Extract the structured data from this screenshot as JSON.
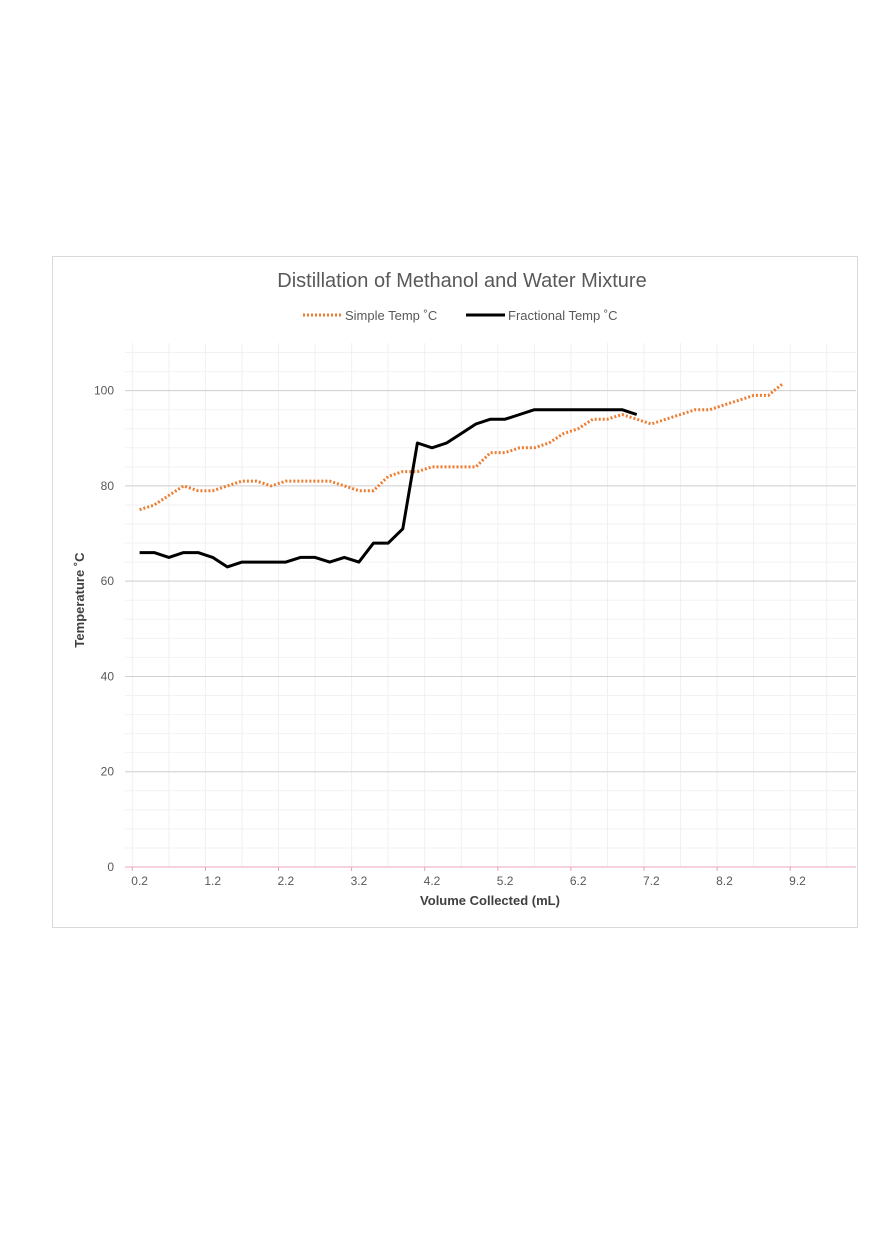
{
  "chart_data": {
    "type": "line",
    "title": "Distillation of Methanol and Water Mixture",
    "xlabel": "Volume Collected (mL)",
    "ylabel": "Temperature ˚C",
    "xlim": [
      0.0,
      10.0
    ],
    "ylim": [
      0,
      110
    ],
    "x_ticks": [
      "0.2",
      "1.2",
      "2.2",
      "3.2",
      "4.2",
      "5.2",
      "6.2",
      "7.2",
      "8.2",
      "9.2"
    ],
    "y_ticks": [
      "0",
      "20",
      "40",
      "60",
      "80",
      "100"
    ],
    "legend_position": "top",
    "series": [
      {
        "name": "Simple Temp ˚C",
        "color": "#ed7d31",
        "style": "dotted",
        "x": [
          0.2,
          0.4,
          0.6,
          0.8,
          1.0,
          1.2,
          1.4,
          1.6,
          1.8,
          2.0,
          2.2,
          2.4,
          2.6,
          2.8,
          3.0,
          3.2,
          3.4,
          3.6,
          3.8,
          4.0,
          4.2,
          4.4,
          4.6,
          4.8,
          5.0,
          5.2,
          5.4,
          5.6,
          5.8,
          6.0,
          6.2,
          6.4,
          6.6,
          6.8,
          7.0,
          7.2,
          7.4,
          7.6,
          7.8,
          8.0,
          8.2,
          8.4,
          8.6,
          8.8,
          9.0
        ],
        "y": [
          75,
          76,
          78,
          80,
          79,
          79,
          80,
          81,
          81,
          80,
          81,
          81,
          81,
          81,
          80,
          79,
          79,
          82,
          83,
          83,
          84,
          84,
          84,
          84,
          87,
          87,
          88,
          88,
          89,
          91,
          92,
          94,
          94,
          95,
          94,
          93,
          94,
          95,
          96,
          96,
          97,
          98,
          99,
          99,
          101.5
        ]
      },
      {
        "name": "Fractional Temp ˚C",
        "color": "#000000",
        "style": "solid",
        "x": [
          0.2,
          0.4,
          0.6,
          0.8,
          1.0,
          1.2,
          1.4,
          1.6,
          1.8,
          2.0,
          2.2,
          2.4,
          2.6,
          2.8,
          3.0,
          3.2,
          3.4,
          3.6,
          3.8,
          4.0,
          4.2,
          4.4,
          4.6,
          4.8,
          5.0,
          5.2,
          5.4,
          5.6,
          5.8,
          6.0,
          6.2,
          6.4,
          6.6,
          6.8,
          7.0
        ],
        "y": [
          66,
          66,
          65,
          66,
          66,
          65,
          63,
          64,
          64,
          64,
          64,
          65,
          65,
          64,
          65,
          64,
          68,
          68,
          71,
          89,
          88,
          89,
          91,
          93,
          94,
          94,
          95,
          96,
          96,
          96,
          96,
          96,
          96,
          96,
          95
        ]
      }
    ]
  }
}
